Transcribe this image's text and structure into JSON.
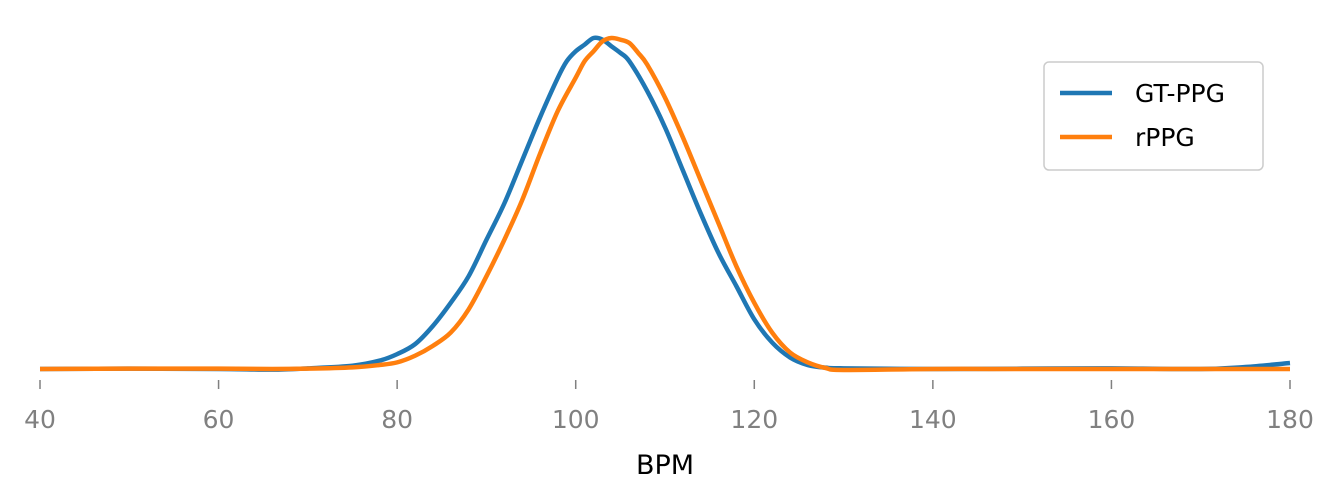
{
  "chart_data": {
    "type": "line",
    "title": "",
    "xlabel": "BPM",
    "ylabel": "",
    "xlim": [
      40,
      180
    ],
    "ylim": [
      0,
      1.05
    ],
    "xticks": [
      40,
      60,
      80,
      100,
      120,
      140,
      160,
      180
    ],
    "legend_position": "top-right",
    "grid": false,
    "series": [
      {
        "name": "GT-PPG",
        "color": "#1f77b4",
        "x": [
          40,
          50,
          60,
          66,
          70,
          75,
          78,
          80,
          82,
          84,
          86,
          88,
          90,
          92,
          94,
          96,
          98,
          99,
          100,
          101,
          102,
          103,
          104,
          105,
          106,
          108,
          110,
          112,
          114,
          116,
          118,
          120,
          122,
          124,
          126,
          128,
          130,
          140,
          150,
          160,
          170,
          175,
          180
        ],
        "y": [
          0.0,
          0.001,
          0.0,
          -0.002,
          0.002,
          0.01,
          0.025,
          0.045,
          0.075,
          0.13,
          0.2,
          0.28,
          0.39,
          0.5,
          0.63,
          0.76,
          0.88,
          0.93,
          0.96,
          0.98,
          1.0,
          0.995,
          0.975,
          0.955,
          0.93,
          0.84,
          0.73,
          0.6,
          0.47,
          0.35,
          0.25,
          0.15,
          0.08,
          0.035,
          0.012,
          0.004,
          0.002,
          0.0,
          0.001,
          0.002,
          0.0,
          0.006,
          0.018
        ]
      },
      {
        "name": "rPPG",
        "color": "#ff7f0e",
        "x": [
          40,
          50,
          60,
          66,
          70,
          75,
          78,
          80,
          82,
          84,
          86,
          88,
          90,
          92,
          94,
          96,
          98,
          100,
          101,
          102,
          103,
          104,
          105,
          106,
          107,
          108,
          110,
          112,
          114,
          116,
          118,
          120,
          122,
          124,
          126,
          128,
          130,
          140,
          150,
          160,
          170,
          180
        ],
        "y": [
          0.0,
          0.001,
          0.001,
          0.0,
          0.001,
          0.005,
          0.012,
          0.02,
          0.04,
          0.07,
          0.11,
          0.18,
          0.28,
          0.39,
          0.51,
          0.65,
          0.78,
          0.88,
          0.93,
          0.96,
          0.99,
          1.0,
          0.995,
          0.985,
          0.955,
          0.92,
          0.82,
          0.7,
          0.57,
          0.44,
          0.31,
          0.2,
          0.11,
          0.05,
          0.02,
          0.003,
          -0.003,
          0.0,
          0.0,
          0.0,
          0.0,
          0.0
        ]
      }
    ]
  }
}
